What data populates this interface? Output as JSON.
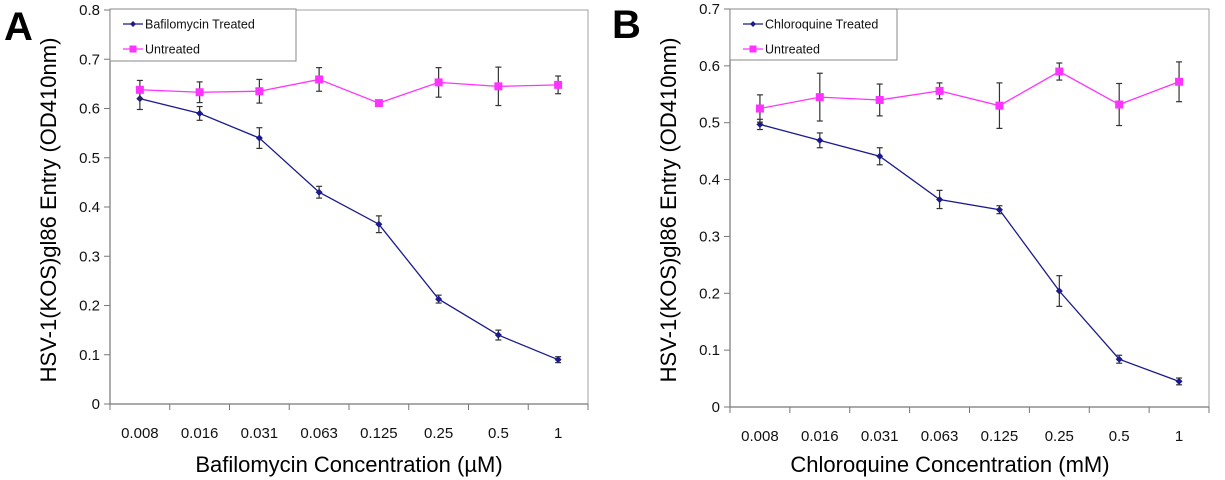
{
  "figure": {
    "panels": [
      "A",
      "B"
    ]
  },
  "chart_data": [
    {
      "panel": "A",
      "type": "line",
      "title": "",
      "xlabel": "Bafilomycin Concentration (µM)",
      "ylabel": "HSV-1(KOS)gl86 Entry (OD410nm)",
      "categories": [
        "0.008",
        "0.016",
        "0.031",
        "0.063",
        "0.125",
        "0.25",
        "0.5",
        "1"
      ],
      "ylim": [
        0,
        0.8
      ],
      "yticks": [
        "0",
        "0.1",
        "0.2",
        "0.3",
        "0.4",
        "0.5",
        "0.6",
        "0.7",
        "0.8"
      ],
      "grid": false,
      "legend": "top-left",
      "series": [
        {
          "name": "Bafilomycin Treated",
          "color": "#1a1a8c",
          "marker": "diamond",
          "values": [
            0.62,
            0.59,
            0.54,
            0.43,
            0.365,
            0.213,
            0.14,
            0.09
          ],
          "errors": [
            0.022,
            0.014,
            0.021,
            0.012,
            0.017,
            0.008,
            0.01,
            0.006
          ]
        },
        {
          "name": "Untreated",
          "color": "#ff33ff",
          "marker": "square",
          "values": [
            0.638,
            0.633,
            0.635,
            0.659,
            0.611,
            0.653,
            0.645,
            0.648
          ],
          "errors": [
            0.019,
            0.021,
            0.024,
            0.024,
            0.005,
            0.03,
            0.039,
            0.018
          ]
        }
      ]
    },
    {
      "panel": "B",
      "type": "line",
      "title": "",
      "xlabel": "Chloroquine Concentration (mM)",
      "ylabel": "HSV-1(KOS)gl86 Entry (OD410nm)",
      "categories": [
        "0.008",
        "0.016",
        "0.031",
        "0.063",
        "0.125",
        "0.25",
        "0.5",
        "1"
      ],
      "ylim": [
        0,
        0.7
      ],
      "yticks": [
        "0",
        "0.1",
        "0.2",
        "0.3",
        "0.4",
        "0.5",
        "0.6",
        "0.7"
      ],
      "grid": false,
      "legend": "top-left",
      "series": [
        {
          "name": "Chloroquine Treated",
          "color": "#1a1a8c",
          "marker": "diamond",
          "values": [
            0.497,
            0.469,
            0.441,
            0.365,
            0.347,
            0.204,
            0.084,
            0.045
          ],
          "errors": [
            0.009,
            0.013,
            0.015,
            0.016,
            0.007,
            0.027,
            0.007,
            0.006
          ]
        },
        {
          "name": "Untreated",
          "color": "#ff33ff",
          "marker": "square",
          "values": [
            0.525,
            0.545,
            0.54,
            0.556,
            0.53,
            0.59,
            0.532,
            0.572
          ],
          "errors": [
            0.024,
            0.042,
            0.028,
            0.014,
            0.04,
            0.015,
            0.037,
            0.035
          ]
        }
      ]
    }
  ]
}
